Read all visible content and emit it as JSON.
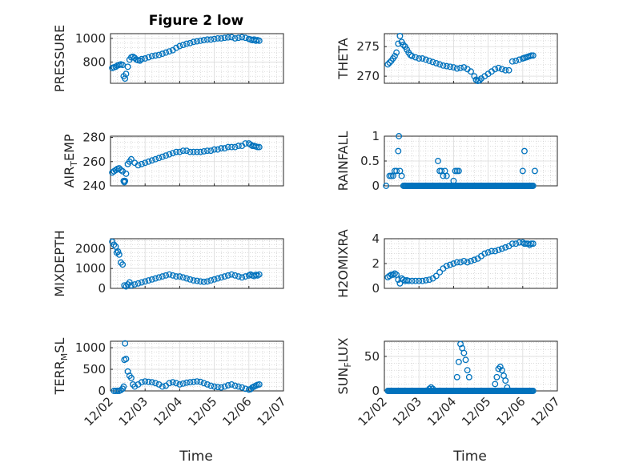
{
  "figure": {
    "title": "Figure 2 low",
    "marker_color": "#0072bd"
  },
  "chart_data": [
    {
      "id": "pressure",
      "type": "scatter",
      "marker": "circle",
      "title": "Figure 2 low",
      "ylabel": "PRESSURE",
      "ylabel_sub": null,
      "xlabel": "",
      "x_unit": "days after 12/02",
      "ylim": [
        620,
        1040
      ],
      "yticks": [
        800,
        1000
      ],
      "ytick_labels": [
        "800",
        "1000"
      ],
      "xlim": [
        0,
        5
      ],
      "x": [
        0.05,
        0.1,
        0.15,
        0.2,
        0.25,
        0.3,
        0.35,
        0.38,
        0.42,
        0.45,
        0.5,
        0.55,
        0.6,
        0.65,
        0.7,
        0.75,
        0.8,
        0.85,
        0.9,
        1.0,
        1.1,
        1.2,
        1.3,
        1.4,
        1.5,
        1.6,
        1.7,
        1.8,
        1.9,
        2.0,
        2.1,
        2.2,
        2.3,
        2.4,
        2.5,
        2.6,
        2.7,
        2.8,
        2.9,
        3.0,
        3.1,
        3.2,
        3.3,
        3.4,
        3.5,
        3.6,
        3.7,
        3.8,
        3.9,
        4.0,
        4.05,
        4.1,
        4.15,
        4.2,
        4.25,
        4.3
      ],
      "y": [
        750,
        755,
        760,
        770,
        775,
        780,
        775,
        680,
        660,
        700,
        760,
        820,
        840,
        845,
        835,
        820,
        815,
        812,
        825,
        830,
        840,
        850,
        855,
        860,
        870,
        880,
        890,
        900,
        920,
        935,
        945,
        955,
        960,
        970,
        975,
        980,
        985,
        990,
        990,
        995,
        1000,
        1000,
        1005,
        1008,
        1010,
        1000,
        1005,
        1010,
        1005,
        995,
        990,
        985,
        990,
        980,
        985,
        980
      ]
    },
    {
      "id": "theta",
      "type": "scatter",
      "marker": "circle",
      "title": "",
      "ylabel": "THETA",
      "ylabel_sub": null,
      "xlabel": "",
      "ylim": [
        268.8,
        277.2
      ],
      "yticks": [
        270,
        275
      ],
      "ytick_labels": [
        "270",
        "275"
      ],
      "xlim": [
        0,
        5
      ],
      "x": [
        0.1,
        0.15,
        0.2,
        0.25,
        0.3,
        0.35,
        0.4,
        0.45,
        0.5,
        0.55,
        0.6,
        0.65,
        0.7,
        0.75,
        0.8,
        0.9,
        1.0,
        1.1,
        1.2,
        1.3,
        1.4,
        1.5,
        1.6,
        1.7,
        1.8,
        1.9,
        2.0,
        2.1,
        2.2,
        2.3,
        2.4,
        2.5,
        2.6,
        2.65,
        2.7,
        2.75,
        2.8,
        2.9,
        3.0,
        3.1,
        3.2,
        3.3,
        3.4,
        3.5,
        3.6,
        3.7,
        3.8,
        3.9,
        4.0,
        4.05,
        4.1,
        4.15,
        4.2,
        4.25,
        4.3
      ],
      "y": [
        272,
        272.3,
        272.6,
        273,
        273.4,
        274,
        275.5,
        276.8,
        275.8,
        275.3,
        275,
        274.5,
        274,
        273.6,
        273.4,
        273.2,
        273,
        273,
        272.8,
        272.6,
        272.4,
        272.2,
        272,
        271.8,
        271.7,
        271.6,
        271.5,
        271.3,
        271.4,
        271.5,
        271.2,
        270.8,
        270,
        269.4,
        269.2,
        269.3,
        269.6,
        270,
        270.4,
        270.8,
        271.2,
        271.4,
        271.2,
        271,
        271,
        272.5,
        272.6,
        272.8,
        273,
        273.1,
        273.2,
        273.3,
        273.4,
        273.5,
        273.5
      ]
    },
    {
      "id": "air_temp",
      "type": "scatter",
      "marker": "circle",
      "title": "",
      "ylabel": "AIR",
      "ylabel_sub": "T",
      "ylabel_rest": "EMP",
      "xlabel": "",
      "ylim": [
        240,
        281
      ],
      "yticks": [
        240,
        260,
        280
      ],
      "ytick_labels": [
        "240",
        "260",
        "280"
      ],
      "xlim": [
        0,
        5
      ],
      "x": [
        0.05,
        0.1,
        0.15,
        0.2,
        0.25,
        0.3,
        0.35,
        0.38,
        0.4,
        0.42,
        0.45,
        0.5,
        0.55,
        0.6,
        0.7,
        0.8,
        0.9,
        1.0,
        1.1,
        1.2,
        1.3,
        1.4,
        1.5,
        1.6,
        1.7,
        1.8,
        1.9,
        2.0,
        2.1,
        2.2,
        2.3,
        2.4,
        2.5,
        2.6,
        2.7,
        2.8,
        2.9,
        3.0,
        3.1,
        3.2,
        3.3,
        3.4,
        3.5,
        3.6,
        3.7,
        3.8,
        3.9,
        4.0,
        4.05,
        4.1,
        4.15,
        4.2,
        4.25,
        4.3
      ],
      "y": [
        251,
        252,
        253,
        254,
        254.5,
        253,
        252,
        244,
        243,
        244,
        250,
        258,
        260,
        262,
        259,
        257,
        258,
        259,
        260,
        261,
        262,
        263,
        264,
        265,
        266,
        267,
        268,
        268,
        269,
        269,
        268,
        268,
        268,
        268,
        268.5,
        269,
        269,
        270,
        270,
        271,
        271,
        272,
        272,
        272,
        273,
        273,
        275,
        275,
        274,
        273,
        273,
        272.5,
        272,
        272
      ]
    },
    {
      "id": "rainfall",
      "type": "scatter",
      "marker": "circle",
      "title": "",
      "ylabel": "RAINFALL",
      "ylabel_sub": null,
      "xlabel": "",
      "ylim": [
        0,
        1
      ],
      "yticks": [
        0,
        0.5,
        1
      ],
      "ytick_labels": [
        "0",
        "0.5",
        "1"
      ],
      "xlim": [
        0,
        5
      ],
      "x": [
        0.05,
        0.15,
        0.2,
        0.25,
        0.3,
        0.35,
        0.4,
        0.42,
        0.45,
        0.5,
        1.55,
        1.6,
        1.65,
        1.7,
        1.75,
        1.8,
        2.0,
        2.05,
        2.1,
        2.15,
        4.0,
        4.05,
        4.35
      ],
      "y": [
        0,
        0.2,
        0.2,
        0.2,
        0.3,
        0.3,
        0.7,
        1.0,
        0.3,
        0.2,
        0.5,
        0.3,
        0.3,
        0.2,
        0.3,
        0.2,
        0.1,
        0.3,
        0.3,
        0.3,
        0.3,
        0.7,
        0.3
      ],
      "baseline_x_from": 0.55,
      "baseline_x_to": 4.3,
      "baseline_y": 0
    },
    {
      "id": "mixdepth",
      "type": "scatter",
      "marker": "circle",
      "title": "",
      "ylabel": "MIXDEPTH",
      "ylabel_sub": null,
      "xlabel": "",
      "ylim": [
        0,
        2500
      ],
      "yticks": [
        0,
        1000,
        2000
      ],
      "ytick_labels": [
        "0",
        "1000",
        "2000"
      ],
      "xlim": [
        0,
        5
      ],
      "x": [
        0.05,
        0.1,
        0.15,
        0.18,
        0.22,
        0.25,
        0.3,
        0.35,
        0.4,
        0.45,
        0.5,
        0.55,
        0.6,
        0.7,
        0.8,
        0.9,
        1.0,
        1.1,
        1.2,
        1.3,
        1.4,
        1.5,
        1.6,
        1.7,
        1.8,
        1.9,
        2.0,
        2.1,
        2.2,
        2.3,
        2.4,
        2.5,
        2.6,
        2.7,
        2.8,
        2.9,
        3.0,
        3.1,
        3.2,
        3.3,
        3.4,
        3.5,
        3.6,
        3.7,
        3.8,
        3.9,
        4.0,
        4.05,
        4.1,
        4.15,
        4.2,
        4.25,
        4.3
      ],
      "y": [
        2350,
        2200,
        2100,
        1800,
        1850,
        1700,
        1300,
        1200,
        150,
        100,
        200,
        300,
        150,
        200,
        250,
        300,
        350,
        400,
        450,
        500,
        550,
        600,
        650,
        700,
        650,
        600,
        600,
        550,
        500,
        450,
        400,
        380,
        350,
        330,
        350,
        400,
        450,
        500,
        550,
        600,
        650,
        700,
        650,
        600,
        550,
        600,
        650,
        700,
        650,
        620,
        680,
        650,
        700
      ]
    },
    {
      "id": "h2omixra",
      "type": "scatter",
      "marker": "circle",
      "title": "",
      "ylabel": "H2OMIXRA",
      "ylabel_sub": null,
      "xlabel": "",
      "ylim": [
        0,
        4
      ],
      "yticks": [
        0,
        2,
        4
      ],
      "ytick_labels": [
        "0",
        "2",
        "4"
      ],
      "xlim": [
        0,
        5
      ],
      "x": [
        0.1,
        0.15,
        0.2,
        0.25,
        0.3,
        0.35,
        0.4,
        0.45,
        0.5,
        0.55,
        0.6,
        0.65,
        0.7,
        0.8,
        0.9,
        1.0,
        1.1,
        1.2,
        1.3,
        1.4,
        1.5,
        1.6,
        1.7,
        1.8,
        1.9,
        2.0,
        2.1,
        2.2,
        2.3,
        2.4,
        2.5,
        2.6,
        2.7,
        2.8,
        2.9,
        3.0,
        3.1,
        3.2,
        3.3,
        3.4,
        3.5,
        3.6,
        3.7,
        3.8,
        3.9,
        4.0,
        4.05,
        4.1,
        4.15,
        4.2,
        4.25,
        4.3
      ],
      "y": [
        0.9,
        1.0,
        1.1,
        1.1,
        1.2,
        1.1,
        0.7,
        0.4,
        0.8,
        0.7,
        0.6,
        0.65,
        0.6,
        0.6,
        0.6,
        0.6,
        0.6,
        0.65,
        0.7,
        0.8,
        1.0,
        1.3,
        1.6,
        1.8,
        1.9,
        2.0,
        2.1,
        2.1,
        2.2,
        2.1,
        2.2,
        2.3,
        2.4,
        2.6,
        2.8,
        2.9,
        3.0,
        3.0,
        3.1,
        3.2,
        3.3,
        3.4,
        3.6,
        3.6,
        3.7,
        3.7,
        3.6,
        3.6,
        3.6,
        3.5,
        3.6,
        3.6
      ]
    },
    {
      "id": "terr_msl",
      "type": "scatter",
      "marker": "circle",
      "title": "",
      "ylabel": "TERR",
      "ylabel_sub": "M",
      "ylabel_rest": "SL",
      "xlabel": "Time",
      "ylim": [
        0,
        1150
      ],
      "yticks": [
        0,
        500,
        1000
      ],
      "ytick_labels": [
        "0",
        "500",
        "1000"
      ],
      "xlim": [
        0,
        5
      ],
      "xticks": [
        0,
        1,
        2,
        3,
        4,
        5
      ],
      "xtick_labels": [
        "12/02",
        "12/03",
        "12/04",
        "12/05",
        "12/06",
        "12/07"
      ],
      "x": [
        0.1,
        0.15,
        0.2,
        0.25,
        0.3,
        0.35,
        0.38,
        0.4,
        0.42,
        0.45,
        0.5,
        0.55,
        0.6,
        0.65,
        0.7,
        0.8,
        0.9,
        1.0,
        1.1,
        1.2,
        1.3,
        1.4,
        1.5,
        1.6,
        1.7,
        1.8,
        1.9,
        2.0,
        2.1,
        2.2,
        2.3,
        2.4,
        2.5,
        2.6,
        2.7,
        2.8,
        2.9,
        3.0,
        3.1,
        3.2,
        3.3,
        3.4,
        3.5,
        3.6,
        3.7,
        3.8,
        3.9,
        4.0,
        4.05,
        4.1,
        4.15,
        4.2,
        4.25,
        4.3
      ],
      "y": [
        0,
        0,
        0,
        0,
        20,
        50,
        100,
        720,
        1100,
        740,
        450,
        350,
        300,
        150,
        100,
        150,
        200,
        220,
        210,
        200,
        180,
        150,
        100,
        120,
        180,
        200,
        180,
        150,
        170,
        190,
        200,
        210,
        220,
        210,
        180,
        150,
        120,
        100,
        90,
        80,
        100,
        130,
        150,
        120,
        100,
        80,
        50,
        30,
        40,
        80,
        100,
        120,
        140,
        150
      ]
    },
    {
      "id": "sun_flux",
      "type": "scatter",
      "marker": "circle",
      "title": "",
      "ylabel": "SUN",
      "ylabel_sub": "F",
      "ylabel_rest": "LUX",
      "xlabel": "Time",
      "ylim": [
        0,
        72
      ],
      "yticks": [
        0,
        50
      ],
      "ytick_labels": [
        "0",
        "50"
      ],
      "xlim": [
        0,
        5
      ],
      "xticks": [
        0,
        1,
        2,
        3,
        4,
        5
      ],
      "xtick_labels": [
        "12/02",
        "12/03",
        "12/04",
        "12/05",
        "12/06",
        "12/07"
      ],
      "x": [
        1.3,
        1.35,
        1.4,
        2.1,
        2.15,
        2.2,
        2.25,
        2.3,
        2.35,
        2.4,
        2.45,
        3.2,
        3.25,
        3.3,
        3.35,
        3.4,
        3.45,
        3.5,
        3.55
      ],
      "y": [
        3,
        5,
        3,
        20,
        42,
        68,
        62,
        55,
        45,
        30,
        20,
        10,
        20,
        32,
        35,
        30,
        22,
        15,
        5
      ],
      "baseline_x_from": 0.1,
      "baseline_x_to": 4.3,
      "baseline_y": 0
    }
  ]
}
